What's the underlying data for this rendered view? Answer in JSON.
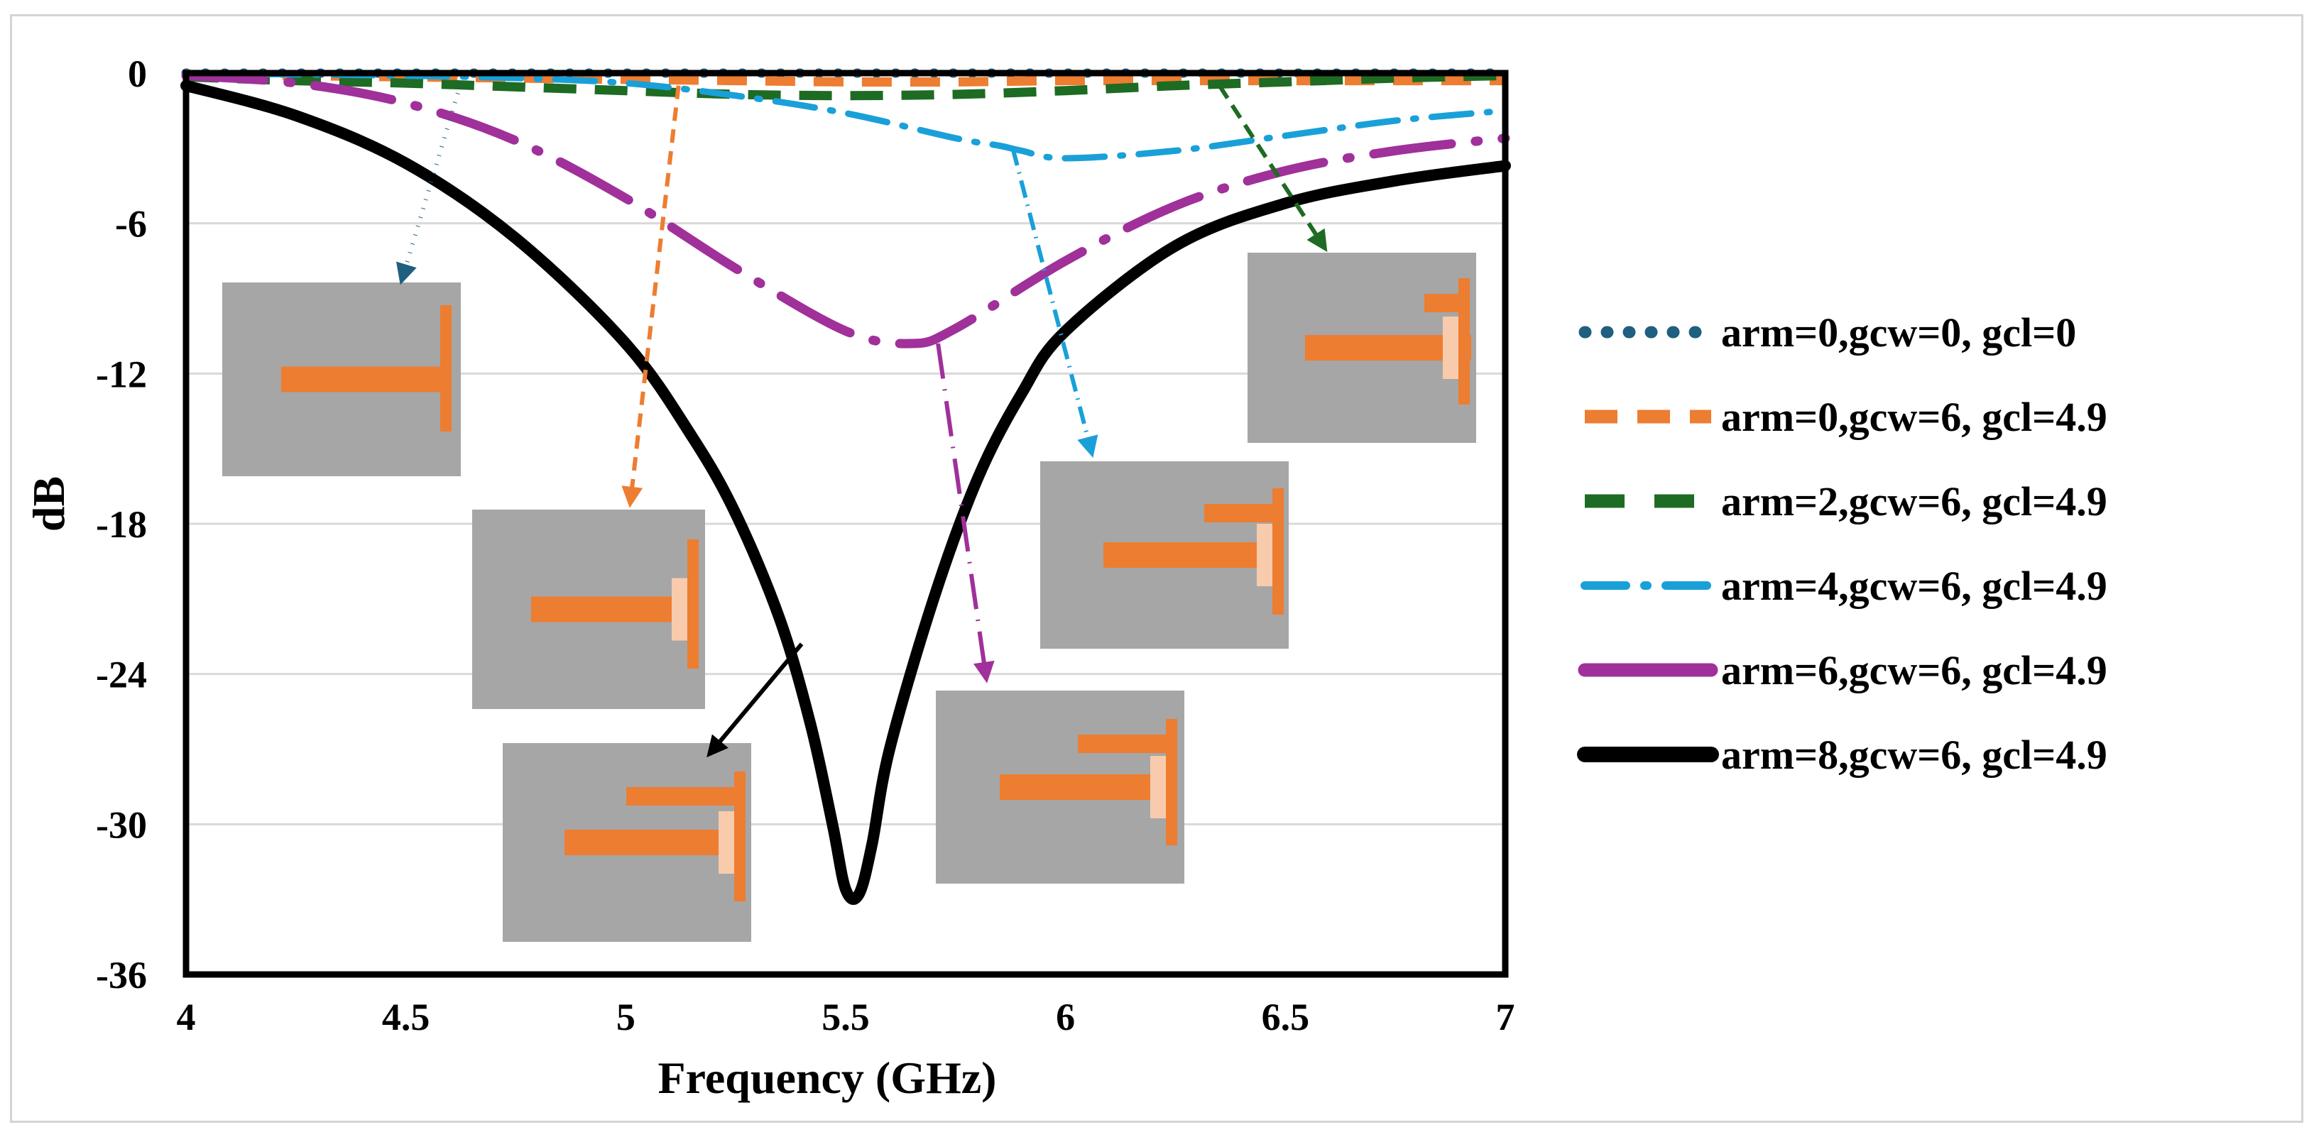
{
  "chart_data": {
    "type": "line",
    "title": "",
    "xlabel": "Frequency (GHz)",
    "ylabel": "dB",
    "xlim": [
      4,
      7
    ],
    "ylim": [
      -36,
      0
    ],
    "xticks": [
      4,
      4.5,
      5,
      5.5,
      6,
      6.5,
      7
    ],
    "xtick_labels": [
      "4",
      "4.5",
      "5",
      "5.5",
      "6",
      "6.5",
      "7"
    ],
    "yticks": [
      0,
      -6,
      -12,
      -18,
      -24,
      -30,
      -36
    ],
    "ytick_labels": [
      "0",
      "-6",
      "-12",
      "-18",
      "-24",
      "-30",
      "-36"
    ],
    "grid": true,
    "legend_position": "right",
    "series": [
      {
        "name": "arm=0,gcw=0, gcl=0",
        "color": "#1f5f7f",
        "style": "dotted",
        "x": [
          4,
          4.5,
          5,
          5.5,
          6,
          6.5,
          7
        ],
        "y": [
          0,
          0,
          0,
          0,
          0,
          0,
          0
        ]
      },
      {
        "name": "arm=0,gcw=6, gcl=4.9",
        "color": "#ed7d31",
        "style": "dashed",
        "x": [
          4,
          4.25,
          4.5,
          4.75,
          5,
          5.25,
          5.5,
          5.75,
          6,
          6.25,
          6.5,
          6.75,
          7
        ],
        "y": [
          -0.05,
          -0.1,
          -0.15,
          -0.2,
          -0.25,
          -0.3,
          -0.35,
          -0.35,
          -0.3,
          -0.3,
          -0.3,
          -0.3,
          -0.3
        ]
      },
      {
        "name": "arm=2,gcw=6, gcl=4.9",
        "color": "#1e6b23",
        "style": "longdash",
        "x": [
          4,
          4.25,
          4.5,
          4.75,
          5,
          5.25,
          5.5,
          5.75,
          6,
          6.25,
          6.5,
          6.75,
          7
        ],
        "y": [
          -0.15,
          -0.3,
          -0.4,
          -0.55,
          -0.7,
          -0.85,
          -0.9,
          -0.85,
          -0.7,
          -0.5,
          -0.35,
          -0.2,
          -0.1
        ]
      },
      {
        "name": "arm=4,gcw=6, gcl=4.9",
        "color": "#1aa0d8",
        "style": "dashdot",
        "x": [
          4,
          4.25,
          4.5,
          4.75,
          5,
          5.25,
          5.5,
          5.75,
          5.85,
          5.9,
          6,
          6.25,
          6.5,
          6.75,
          7
        ],
        "y": [
          0,
          -0.05,
          -0.1,
          -0.2,
          -0.4,
          -0.9,
          -1.6,
          -2.6,
          -2.9,
          -3.1,
          -3.4,
          -3.1,
          -2.5,
          -1.9,
          -1.5
        ]
      },
      {
        "name": "arm=6,gcw=6, gcl=4.9",
        "color": "#a0309a",
        "style": "dashdotlong",
        "x": [
          4,
          4.25,
          4.5,
          4.75,
          5,
          5.25,
          5.5,
          5.65,
          5.75,
          6,
          6.25,
          6.5,
          6.75,
          7
        ],
        "y": [
          -0.1,
          -0.4,
          -1.2,
          -2.7,
          -5,
          -7.8,
          -10.3,
          -10.8,
          -10.2,
          -7.5,
          -5.3,
          -3.9,
          -3.1,
          -2.6
        ]
      },
      {
        "name": "arm=8,gcw=6, gcl=4.9",
        "color": "#000000",
        "style": "solid",
        "x": [
          4,
          4.25,
          4.5,
          4.75,
          5,
          5.15,
          5.25,
          5.35,
          5.42,
          5.47,
          5.5,
          5.53,
          5.56,
          5.6,
          5.7,
          5.8,
          5.9,
          6,
          6.25,
          6.5,
          6.75,
          7
        ],
        "y": [
          -0.5,
          -1.7,
          -3.6,
          -6.6,
          -10.8,
          -14.5,
          -17.6,
          -21.8,
          -26,
          -30,
          -32.6,
          -32.8,
          -30.8,
          -27,
          -21,
          -16.2,
          -12.8,
          -10.3,
          -6.9,
          -5.2,
          -4.3,
          -3.7
        ]
      }
    ],
    "annotations": [
      {
        "from": [
          4.63,
          -0.1
        ],
        "to": [
          4.49,
          -8.3
        ],
        "color": "#1f5f7f",
        "style": "dotted"
      },
      {
        "from": [
          5.12,
          -0.5
        ],
        "to": [
          5.01,
          -17.2
        ],
        "color": "#ed7d31",
        "style": "dashed"
      },
      {
        "from": [
          6.35,
          -0.5
        ],
        "to": [
          6.59,
          -7.0
        ],
        "color": "#1e6b23",
        "style": "longdash"
      },
      {
        "from": [
          5.88,
          -3.0
        ],
        "to": [
          6.06,
          -15.2
        ],
        "color": "#1aa0d8",
        "style": "dashdot"
      },
      {
        "from": [
          5.71,
          -10.8
        ],
        "to": [
          5.82,
          -24.2
        ],
        "color": "#a0309a",
        "style": "dashdotlong"
      },
      {
        "from": [
          5.4,
          -22.8
        ],
        "to": [
          5.19,
          -27.2
        ],
        "color": "#000000",
        "style": "solid"
      }
    ]
  }
}
